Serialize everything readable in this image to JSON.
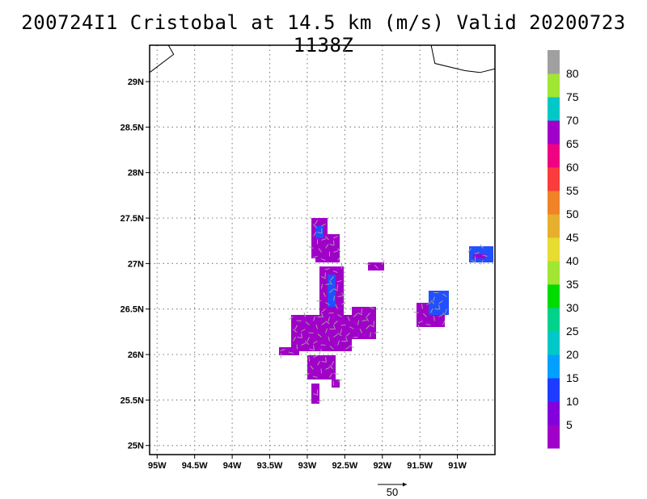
{
  "title": "200724I1 Cristobal at 14.5 km (m/s) Valid 20200723 1138Z",
  "map": {
    "lon_range": [
      -95.1,
      -90.5
    ],
    "lat_range": [
      24.9,
      29.4
    ],
    "lon_ticks": [
      {
        "value": -95,
        "label": "95W"
      },
      {
        "value": -94.5,
        "label": "94.5W"
      },
      {
        "value": -94,
        "label": "94W"
      },
      {
        "value": -93.5,
        "label": "93.5W"
      },
      {
        "value": -93,
        "label": "93W"
      },
      {
        "value": -92.5,
        "label": "92.5W"
      },
      {
        "value": -92,
        "label": "92W"
      },
      {
        "value": -91.5,
        "label": "91.5W"
      },
      {
        "value": -91,
        "label": "91W"
      }
    ],
    "lat_ticks": [
      {
        "value": 29,
        "label": "29N"
      },
      {
        "value": 28.5,
        "label": "28.5N"
      },
      {
        "value": 28,
        "label": "28N"
      },
      {
        "value": 27.5,
        "label": "27.5N"
      },
      {
        "value": 27,
        "label": "27N"
      },
      {
        "value": 26.5,
        "label": "26.5N"
      },
      {
        "value": 26,
        "label": "26N"
      },
      {
        "value": 25.5,
        "label": "25.5N"
      },
      {
        "value": 25,
        "label": "25N"
      }
    ],
    "grid": "dotted",
    "fill_colors": {
      "purple": "#a000c8",
      "blue": "#2050ff",
      "arrow": "#a0a0a0"
    },
    "coastlines": [
      [
        [
          -94.85,
          29.4
        ],
        [
          -94.78,
          29.3
        ],
        [
          -95.1,
          29.1
        ]
      ],
      [
        [
          -91.35,
          29.4
        ],
        [
          -91.3,
          29.2
        ],
        [
          -90.9,
          29.12
        ],
        [
          -90.7,
          29.1
        ],
        [
          -90.5,
          29.14
        ]
      ]
    ]
  },
  "colorbar": {
    "colors": [
      "#a000c8",
      "#8200dc",
      "#1e3cff",
      "#00a0ff",
      "#00c8c8",
      "#00d28c",
      "#00dc00",
      "#a0e632",
      "#e6dc32",
      "#e6af2d",
      "#f08228",
      "#fa3c3c",
      "#f00082",
      "#a000c8",
      "#00c8c8",
      "#a0e632",
      "#a0a0a0"
    ],
    "labels": [
      "5",
      "10",
      "15",
      "20",
      "25",
      "30",
      "35",
      "40",
      "45",
      "50",
      "55",
      "60",
      "65",
      "70",
      "75",
      "80"
    ]
  },
  "reference_vector": {
    "label": "50"
  }
}
